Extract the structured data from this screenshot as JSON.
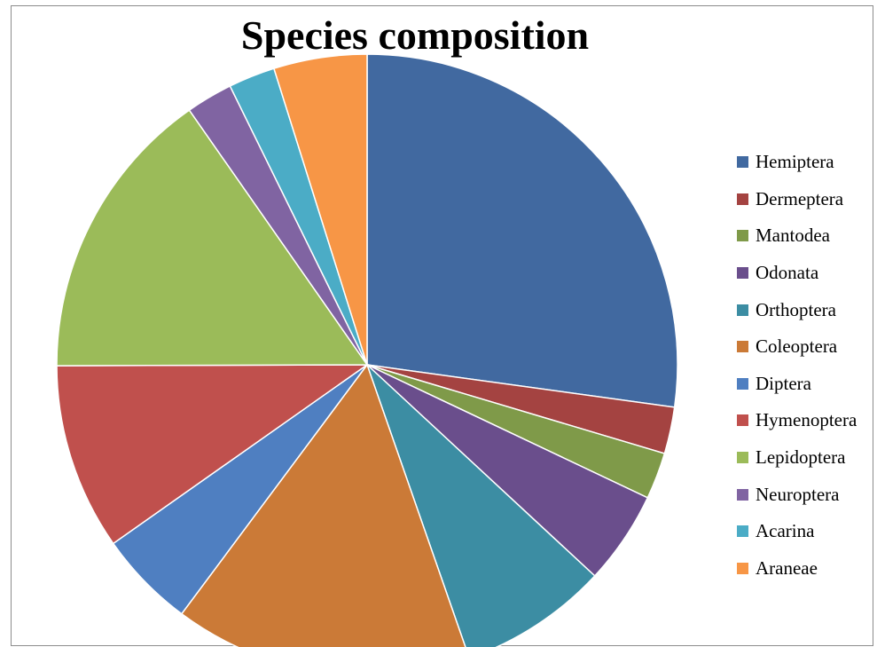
{
  "chart_data": {
    "type": "pie",
    "title": "Species composition",
    "legend_position": "right",
    "start_angle_deg": 0,
    "direction": "clockwise",
    "slices": [
      {
        "label": "Hemiptera",
        "value": 28.0,
        "color": "#4169A0"
      },
      {
        "label": "Dermeptera",
        "value": 2.5,
        "color": "#A44341"
      },
      {
        "label": "Mantodea",
        "value": 2.5,
        "color": "#7F9A49"
      },
      {
        "label": "Odonata",
        "value": 5.0,
        "color": "#6A4E8C"
      },
      {
        "label": "Orthoptera",
        "value": 8.0,
        "color": "#3C8DA3"
      },
      {
        "label": "Coleoptera",
        "value": 16.0,
        "color": "#CB7A37"
      },
      {
        "label": "Diptera",
        "value": 5.2,
        "color": "#4F7FC1"
      },
      {
        "label": "Hymenoptera",
        "value": 10.0,
        "color": "#C0504D"
      },
      {
        "label": "Lepidoptera",
        "value": 15.8,
        "color": "#9BBB59"
      },
      {
        "label": "Neuroptera",
        "value": 2.5,
        "color": "#8064A2"
      },
      {
        "label": "Acarina",
        "value": 2.5,
        "color": "#4BACC6"
      },
      {
        "label": "Araneae",
        "value": 5.0,
        "color": "#F79646"
      }
    ]
  }
}
